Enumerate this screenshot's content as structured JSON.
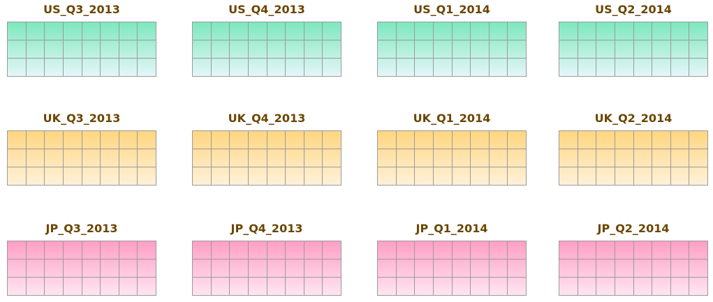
{
  "rows": [
    [
      "US_Q3_2013",
      "US_Q4_2013",
      "US_Q1_2014",
      "US_Q2_2014"
    ],
    [
      "UK_Q3_2013",
      "UK_Q4_2013",
      "UK_Q1_2014",
      "UK_Q2_2014"
    ],
    [
      "JP_Q3_2013",
      "JP_Q4_2013",
      "JP_Q1_2014",
      "JP_Q2_2014"
    ]
  ]
}
